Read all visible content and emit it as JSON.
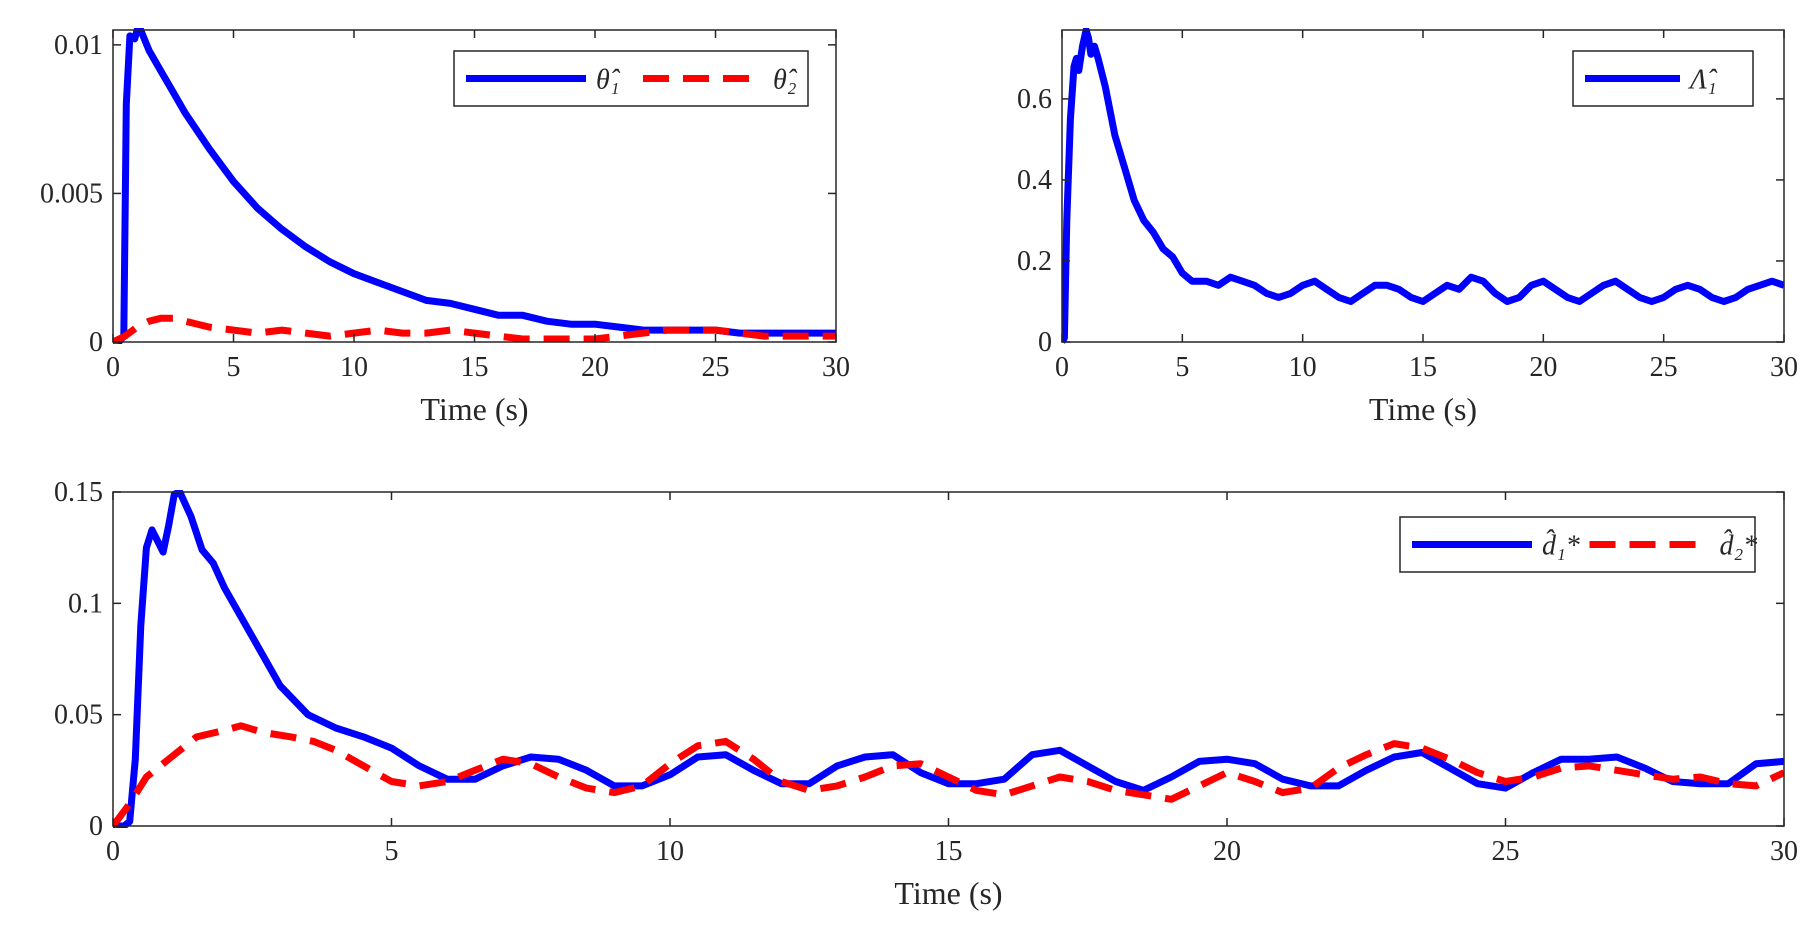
{
  "colors": {
    "series_blue": "#0000ff",
    "series_red": "#ff0000",
    "axis": "#262626"
  },
  "chart_data": [
    {
      "type": "line",
      "title": "",
      "xlabel": "Time (s)",
      "ylabel": "",
      "xlim": [
        0,
        30
      ],
      "ylim": [
        0,
        0.0105
      ],
      "xticks": [
        0,
        5,
        10,
        15,
        20,
        25,
        30
      ],
      "xtick_labels": [
        "0",
        "5",
        "10",
        "15",
        "20",
        "25",
        "30"
      ],
      "yticks": [
        0,
        0.005,
        0.01
      ],
      "ytick_labels": [
        "0",
        "0.005",
        "0.01"
      ],
      "grid": false,
      "legend_position": "top-right",
      "series": [
        {
          "name": "θ̂₁",
          "color": "#0000ff",
          "dash": "solid",
          "x": [
            0,
            0.25,
            0.45,
            0.55,
            0.7,
            0.9,
            1.0,
            1.1,
            1.2,
            1.5,
            2,
            2.5,
            3,
            4,
            5,
            6,
            7,
            8,
            9,
            10,
            11,
            12,
            13,
            14,
            15,
            16,
            17,
            18,
            19,
            20,
            21,
            22,
            23,
            24,
            25,
            26,
            27,
            28,
            29,
            30
          ],
          "values": [
            0,
            0,
            0.0002,
            0.008,
            0.0103,
            0.0102,
            0.0105,
            0.0106,
            0.0104,
            0.0098,
            0.0091,
            0.0084,
            0.0077,
            0.0065,
            0.0054,
            0.0045,
            0.0038,
            0.0032,
            0.0027,
            0.0023,
            0.002,
            0.0017,
            0.0014,
            0.0013,
            0.0011,
            0.0009,
            0.0009,
            0.0007,
            0.0006,
            0.0006,
            0.0005,
            0.0004,
            0.0004,
            0.0004,
            0.0004,
            0.0003,
            0.0003,
            0.0003,
            0.0003,
            0.0003
          ]
        },
        {
          "name": "θ̂₂",
          "color": "#ff0000",
          "dash": "dashed",
          "x": [
            0,
            0.5,
            1,
            1.5,
            2,
            2.5,
            3,
            4,
            5,
            6,
            7,
            8,
            9,
            10,
            11,
            12,
            13,
            14,
            15,
            16,
            17,
            18,
            19,
            20,
            21,
            22,
            23,
            24,
            25,
            26,
            27,
            28,
            29,
            30
          ],
          "values": [
            0,
            0.0002,
            0.0005,
            0.0007,
            0.0008,
            0.0008,
            0.0007,
            0.0005,
            0.0004,
            0.0003,
            0.0004,
            0.0003,
            0.0002,
            0.0003,
            0.0004,
            0.0003,
            0.0003,
            0.0004,
            0.0003,
            0.0002,
            0.0001,
            0.0001,
            0.0001,
            0.0001,
            0.0002,
            0.0003,
            0.0004,
            0.0004,
            0.0004,
            0.0003,
            0.0002,
            0.0002,
            0.0002,
            0.0002
          ]
        }
      ]
    },
    {
      "type": "line",
      "title": "",
      "xlabel": "Time (s)",
      "ylabel": "",
      "xlim": [
        0,
        30
      ],
      "ylim": [
        0,
        0.77
      ],
      "xticks": [
        0,
        5,
        10,
        15,
        20,
        25,
        30
      ],
      "xtick_labels": [
        "0",
        "5",
        "10",
        "15",
        "20",
        "25",
        "30"
      ],
      "yticks": [
        0,
        0.2,
        0.4,
        0.6
      ],
      "ytick_labels": [
        "0",
        "0.2",
        "0.4",
        "0.6"
      ],
      "grid": false,
      "legend_position": "top-right",
      "series": [
        {
          "name": "Λ̂₁",
          "color": "#0000ff",
          "dash": "solid",
          "x": [
            0,
            0.1,
            0.2,
            0.35,
            0.5,
            0.6,
            0.7,
            0.85,
            1.0,
            1.1,
            1.2,
            1.35,
            1.5,
            1.8,
            2.2,
            2.6,
            3,
            3.4,
            3.8,
            4.2,
            4.6,
            5,
            5.4,
            6,
            6.5,
            7,
            7.5,
            8,
            8.5,
            9,
            9.5,
            10,
            10.5,
            11,
            11.5,
            12,
            12.5,
            13,
            13.5,
            14,
            14.5,
            15,
            15.5,
            16,
            16.5,
            17,
            17.5,
            18,
            18.5,
            19,
            19.5,
            20,
            20.5,
            21,
            21.5,
            22,
            22.5,
            23,
            23.5,
            24,
            24.5,
            25,
            25.5,
            26,
            26.5,
            27,
            27.5,
            28,
            28.5,
            29,
            29.5,
            30
          ],
          "values": [
            0,
            0.01,
            0.3,
            0.55,
            0.68,
            0.7,
            0.67,
            0.73,
            0.77,
            0.75,
            0.71,
            0.73,
            0.7,
            0.63,
            0.51,
            0.43,
            0.35,
            0.3,
            0.27,
            0.23,
            0.21,
            0.17,
            0.15,
            0.15,
            0.14,
            0.16,
            0.15,
            0.14,
            0.12,
            0.11,
            0.12,
            0.14,
            0.15,
            0.13,
            0.11,
            0.1,
            0.12,
            0.14,
            0.14,
            0.13,
            0.11,
            0.1,
            0.12,
            0.14,
            0.13,
            0.16,
            0.15,
            0.12,
            0.1,
            0.11,
            0.14,
            0.15,
            0.13,
            0.11,
            0.1,
            0.12,
            0.14,
            0.15,
            0.13,
            0.11,
            0.1,
            0.11,
            0.13,
            0.14,
            0.13,
            0.11,
            0.1,
            0.11,
            0.13,
            0.14,
            0.15,
            0.14
          ]
        }
      ]
    },
    {
      "type": "line",
      "title": "",
      "xlabel": "Time (s)",
      "ylabel": "",
      "xlim": [
        0,
        30
      ],
      "ylim": [
        0,
        0.15
      ],
      "xticks": [
        0,
        5,
        10,
        15,
        20,
        25,
        30
      ],
      "xtick_labels": [
        "0",
        "5",
        "10",
        "15",
        "20",
        "25",
        "30"
      ],
      "yticks": [
        0,
        0.05,
        0.1,
        0.15
      ],
      "ytick_labels": [
        "0",
        "0.05",
        "0.1",
        "0.15"
      ],
      "grid": false,
      "legend_position": "top-right",
      "series": [
        {
          "name": "d̂₁*",
          "color": "#0000ff",
          "dash": "solid",
          "x": [
            0,
            0.2,
            0.3,
            0.4,
            0.5,
            0.6,
            0.7,
            0.8,
            0.9,
            1.0,
            1.1,
            1.2,
            1.4,
            1.6,
            1.8,
            2.0,
            2.5,
            3.0,
            3.5,
            4.0,
            4.5,
            5.0,
            5.5,
            6.0,
            6.5,
            7.0,
            7.5,
            8.0,
            8.5,
            9.0,
            9.5,
            10.0,
            10.5,
            11.0,
            11.5,
            12.0,
            12.5,
            13.0,
            13.5,
            14.0,
            14.5,
            15.0,
            15.5,
            16.0,
            16.5,
            17.0,
            17.5,
            18.0,
            18.5,
            19.0,
            19.5,
            20.0,
            20.5,
            21.0,
            21.5,
            22.0,
            22.5,
            23.0,
            23.5,
            24.0,
            24.5,
            25.0,
            25.5,
            26.0,
            26.5,
            27.0,
            27.5,
            28.0,
            28.5,
            29.0,
            29.5,
            30.0
          ],
          "values": [
            0,
            0,
            0.002,
            0.03,
            0.09,
            0.125,
            0.133,
            0.128,
            0.123,
            0.135,
            0.149,
            0.15,
            0.139,
            0.124,
            0.118,
            0.107,
            0.085,
            0.063,
            0.05,
            0.044,
            0.04,
            0.035,
            0.027,
            0.021,
            0.021,
            0.027,
            0.031,
            0.03,
            0.025,
            0.018,
            0.018,
            0.023,
            0.031,
            0.032,
            0.025,
            0.019,
            0.019,
            0.027,
            0.031,
            0.032,
            0.024,
            0.019,
            0.019,
            0.021,
            0.032,
            0.034,
            0.027,
            0.02,
            0.016,
            0.022,
            0.029,
            0.03,
            0.028,
            0.021,
            0.018,
            0.018,
            0.025,
            0.031,
            0.033,
            0.026,
            0.019,
            0.017,
            0.024,
            0.03,
            0.03,
            0.031,
            0.026,
            0.02,
            0.019,
            0.019,
            0.028,
            0.029
          ]
        },
        {
          "name": "d̂₂*",
          "color": "#ff0000",
          "dash": "dashed",
          "x": [
            0,
            0.3,
            0.6,
            1.0,
            1.5,
            2.0,
            2.3,
            2.7,
            3.2,
            3.6,
            4.0,
            4.5,
            5.0,
            5.5,
            6.0,
            6.5,
            7.0,
            7.5,
            8.0,
            8.5,
            9.0,
            9.5,
            10.0,
            10.5,
            11.0,
            11.5,
            12.0,
            12.5,
            13.0,
            13.5,
            14.0,
            14.5,
            15.0,
            15.5,
            16.0,
            16.5,
            17.0,
            17.5,
            18.0,
            18.5,
            19.0,
            19.5,
            20.0,
            20.5,
            21.0,
            21.5,
            22.0,
            22.5,
            23.0,
            23.5,
            24.0,
            24.5,
            25.0,
            25.5,
            26.0,
            26.5,
            27.0,
            27.5,
            28.0,
            28.5,
            29.0,
            29.5,
            30.0
          ],
          "values": [
            0,
            0.01,
            0.022,
            0.03,
            0.04,
            0.043,
            0.045,
            0.042,
            0.04,
            0.038,
            0.034,
            0.027,
            0.02,
            0.018,
            0.02,
            0.025,
            0.03,
            0.028,
            0.022,
            0.017,
            0.015,
            0.018,
            0.028,
            0.036,
            0.038,
            0.03,
            0.02,
            0.016,
            0.018,
            0.022,
            0.027,
            0.028,
            0.022,
            0.016,
            0.014,
            0.018,
            0.022,
            0.02,
            0.016,
            0.014,
            0.012,
            0.018,
            0.024,
            0.02,
            0.015,
            0.017,
            0.026,
            0.032,
            0.037,
            0.035,
            0.03,
            0.024,
            0.02,
            0.022,
            0.026,
            0.027,
            0.025,
            0.023,
            0.021,
            0.022,
            0.019,
            0.018,
            0.024
          ]
        }
      ]
    }
  ]
}
